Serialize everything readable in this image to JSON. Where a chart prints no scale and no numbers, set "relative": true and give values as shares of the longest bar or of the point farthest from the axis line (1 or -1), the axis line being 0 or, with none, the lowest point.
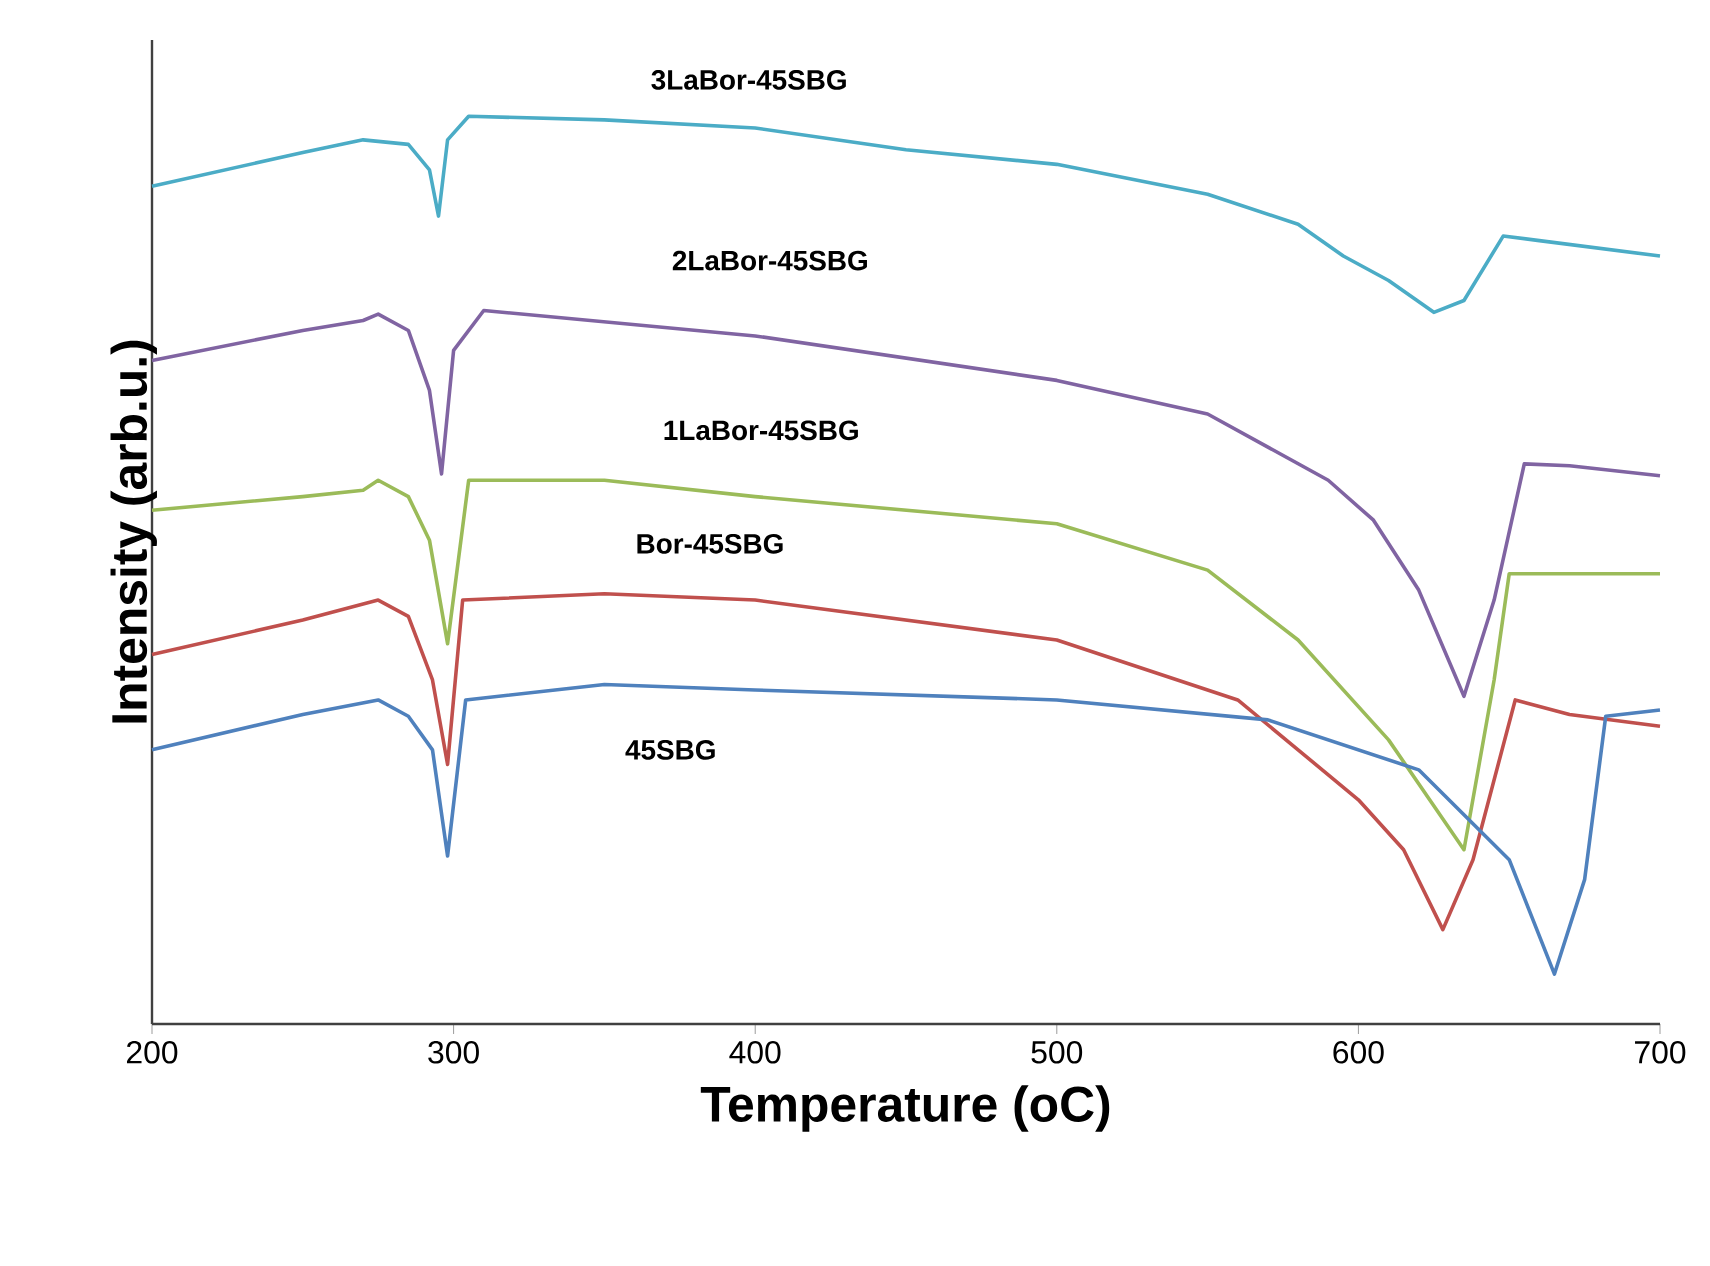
{
  "chart_data": {
    "type": "line",
    "xlabel": "Temperature (oC)",
    "ylabel": "Intensity  (arb.u.)",
    "relative": true,
    "xlim": [
      200,
      700
    ],
    "xticks": [
      200,
      300,
      400,
      500,
      600,
      700
    ],
    "grid": false,
    "legend": false,
    "marker": "none",
    "line_style": "solid",
    "series": [
      {
        "name": "3LaBor-45SBG",
        "color": "#4bacc6",
        "x": [
          200,
          250,
          270,
          285,
          292,
          295,
          298,
          305,
          350,
          400,
          450,
          500,
          550,
          580,
          595,
          610,
          625,
          635,
          648,
          660,
          700
        ],
        "values": [
          0.923,
          0.96,
          0.974,
          0.969,
          0.941,
          0.89,
          0.974,
          1.0,
          0.996,
          0.987,
          0.963,
          0.947,
          0.914,
          0.881,
          0.846,
          0.819,
          0.784,
          0.797,
          0.868,
          0.863,
          0.846
        ]
      },
      {
        "name": "2LaBor-45SBG",
        "color": "#8064a2",
        "x": [
          200,
          250,
          270,
          275,
          285,
          292,
          296,
          300,
          310,
          400,
          500,
          550,
          590,
          605,
          620,
          635,
          645,
          655,
          670,
          700
        ],
        "values": [
          0.731,
          0.764,
          0.775,
          0.782,
          0.764,
          0.698,
          0.606,
          0.742,
          0.786,
          0.758,
          0.709,
          0.672,
          0.599,
          0.555,
          0.478,
          0.361,
          0.467,
          0.617,
          0.615,
          0.604
        ]
      },
      {
        "name": "1LaBor-45SBG",
        "color": "#9bbb59",
        "x": [
          200,
          250,
          270,
          275,
          285,
          292,
          298,
          305,
          350,
          400,
          500,
          550,
          580,
          610,
          635,
          645,
          650,
          700
        ],
        "values": [
          0.566,
          0.581,
          0.588,
          0.599,
          0.581,
          0.533,
          0.419,
          0.599,
          0.599,
          0.581,
          0.551,
          0.5,
          0.423,
          0.313,
          0.192,
          0.379,
          0.496,
          0.496
        ]
      },
      {
        "name": "Bor-45SBG",
        "color": "#c0504d",
        "x": [
          200,
          250,
          275,
          285,
          293,
          298,
          303,
          350,
          400,
          500,
          560,
          580,
          600,
          615,
          628,
          638,
          652,
          670,
          700
        ],
        "values": [
          0.407,
          0.445,
          0.467,
          0.449,
          0.379,
          0.286,
          0.467,
          0.474,
          0.467,
          0.423,
          0.357,
          0.302,
          0.247,
          0.192,
          0.104,
          0.181,
          0.357,
          0.341,
          0.328
        ]
      },
      {
        "name": "45SBG",
        "color": "#4f81bd",
        "x": [
          200,
          250,
          275,
          285,
          293,
          298,
          304,
          350,
          400,
          500,
          570,
          620,
          650,
          665,
          675,
          682,
          700
        ],
        "values": [
          0.302,
          0.341,
          0.357,
          0.339,
          0.302,
          0.185,
          0.357,
          0.374,
          0.368,
          0.357,
          0.335,
          0.28,
          0.181,
          0.055,
          0.159,
          0.339,
          0.346
        ]
      }
    ]
  }
}
